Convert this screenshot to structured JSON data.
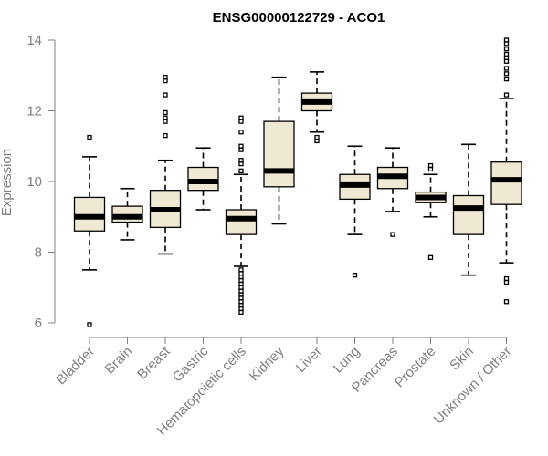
{
  "chart_data": {
    "type": "boxplot",
    "title": "ENSG00000122729 - ACO1",
    "xlabel": "",
    "ylabel": "Expression",
    "ylim": [
      5.9,
      14.1
    ],
    "yticks": [
      6,
      8,
      10,
      12,
      14
    ],
    "colors": {
      "box_fill": "#efe8d2",
      "stroke": "#000000",
      "axis": "#808080",
      "text": "#808080"
    },
    "categories": [
      "Bladder",
      "Brain",
      "Breast",
      "Gastric",
      "Hematopoietic cells",
      "Kidney",
      "Liver",
      "Lung",
      "Pancreas",
      "Prostate",
      "Skin",
      "Unknown / Other"
    ],
    "boxes": [
      {
        "name": "Bladder",
        "whisker_low": 7.5,
        "q1": 8.6,
        "median": 9.0,
        "q3": 9.55,
        "whisker_high": 10.7,
        "outliers": [
          11.25,
          5.95
        ]
      },
      {
        "name": "Brain",
        "whisker_low": 8.35,
        "q1": 8.85,
        "median": 9.0,
        "q3": 9.3,
        "whisker_high": 9.8,
        "outliers": []
      },
      {
        "name": "Breast",
        "whisker_low": 7.95,
        "q1": 8.7,
        "median": 9.2,
        "q3": 9.75,
        "whisker_high": 10.6,
        "outliers": [
          12.95,
          12.85,
          12.45,
          11.95,
          11.8,
          11.7,
          11.3
        ]
      },
      {
        "name": "Gastric",
        "whisker_low": 9.2,
        "q1": 9.75,
        "median": 10.0,
        "q3": 10.4,
        "whisker_high": 10.95,
        "outliers": []
      },
      {
        "name": "Hematopoietic cells",
        "whisker_low": 7.6,
        "q1": 8.5,
        "median": 8.95,
        "q3": 9.2,
        "whisker_high": 10.2,
        "outliers": [
          11.8,
          11.7,
          11.4,
          11.0,
          10.9,
          10.6,
          10.5,
          10.3,
          7.5,
          7.4,
          7.3,
          7.2,
          7.1,
          7.0,
          6.9,
          6.8,
          6.7,
          6.6,
          6.5,
          6.4,
          6.3
        ]
      },
      {
        "name": "Kidney",
        "whisker_low": 8.8,
        "q1": 9.85,
        "median": 10.3,
        "q3": 11.7,
        "whisker_high": 12.95,
        "outliers": []
      },
      {
        "name": "Liver",
        "whisker_low": 11.4,
        "q1": 12.0,
        "median": 12.25,
        "q3": 12.5,
        "whisker_high": 13.1,
        "outliers": [
          11.25,
          11.15
        ]
      },
      {
        "name": "Lung",
        "whisker_low": 8.5,
        "q1": 9.5,
        "median": 9.9,
        "q3": 10.2,
        "whisker_high": 11.0,
        "outliers": [
          7.35
        ]
      },
      {
        "name": "Pancreas",
        "whisker_low": 9.15,
        "q1": 9.8,
        "median": 10.15,
        "q3": 10.4,
        "whisker_high": 10.95,
        "outliers": [
          8.5
        ]
      },
      {
        "name": "Prostate",
        "whisker_low": 9.0,
        "q1": 9.4,
        "median": 9.55,
        "q3": 9.7,
        "whisker_high": 10.2,
        "outliers": [
          10.45,
          10.35,
          7.85
        ]
      },
      {
        "name": "Skin",
        "whisker_low": 7.35,
        "q1": 8.5,
        "median": 9.25,
        "q3": 9.6,
        "whisker_high": 11.05,
        "outliers": []
      },
      {
        "name": "Unknown / Other",
        "whisker_low": 7.7,
        "q1": 9.35,
        "median": 10.05,
        "q3": 10.55,
        "whisker_high": 12.35,
        "outliers": [
          14.0,
          13.9,
          13.75,
          13.6,
          13.5,
          13.4,
          13.2,
          13.05,
          12.9,
          12.45,
          7.25,
          7.15,
          6.6
        ]
      }
    ]
  }
}
